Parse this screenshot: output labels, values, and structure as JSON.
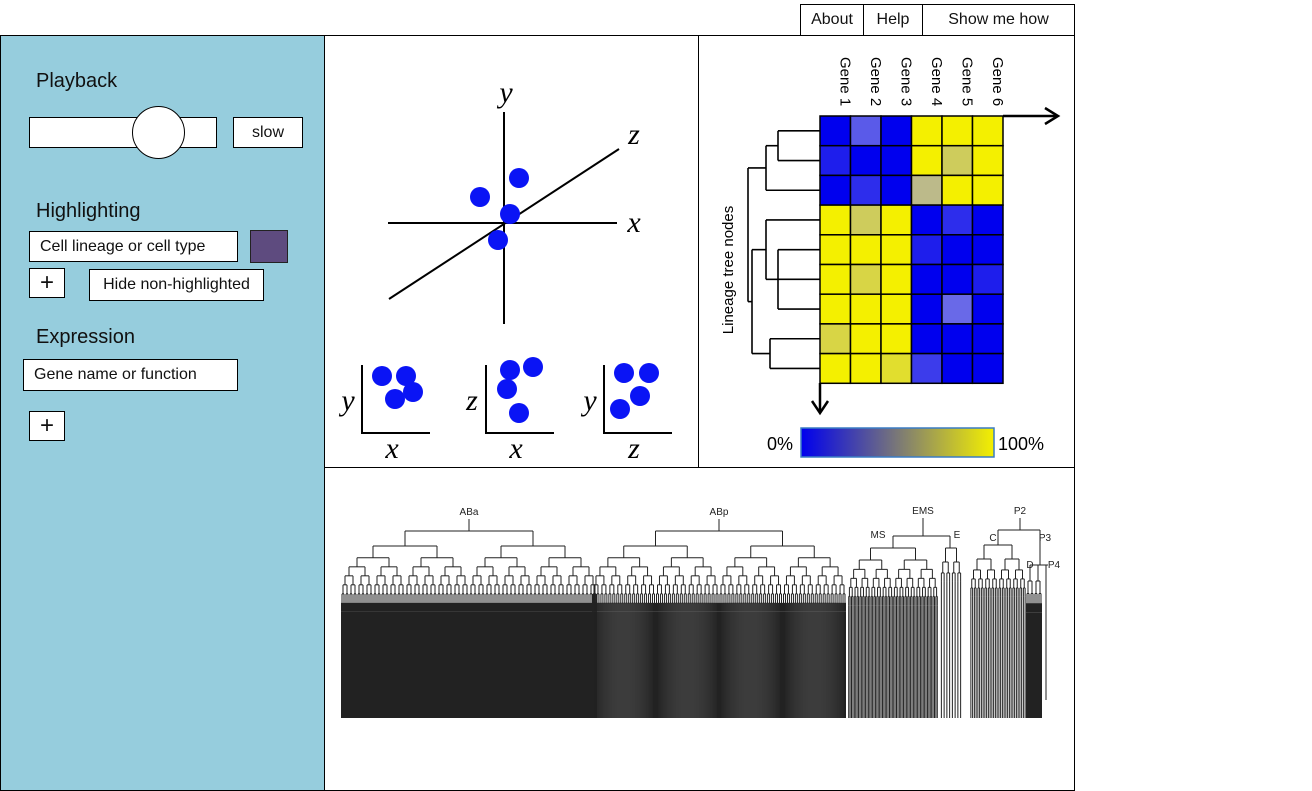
{
  "topnav": {
    "about": "About",
    "help": "Help",
    "show_me_how": "Show me how"
  },
  "sidebar": {
    "bg_color": "#96cddd",
    "playback": {
      "heading": "Playback",
      "speed_label": "slow"
    },
    "highlighting": {
      "heading": "Highlighting",
      "field_text": "Cell lineage or cell type",
      "swatch_color": "#5e4b7f",
      "add_label": "+",
      "hide_label": "Hide non-highlighted"
    },
    "expression": {
      "heading": "Expression",
      "field_text": "Gene name or function",
      "add_label": "+"
    }
  },
  "plot3d": {
    "axis_x": "x",
    "axis_y": "y",
    "axis_z": "z",
    "point_color": "#0a14f5",
    "projections": [
      {
        "vertical": "y",
        "horizontal": "x"
      },
      {
        "vertical": "z",
        "horizontal": "x"
      },
      {
        "vertical": "y",
        "horizontal": "z"
      }
    ]
  },
  "heatmap": {
    "genes": [
      "Gene 1",
      "Gene 2",
      "Gene 3",
      "Gene 4",
      "Gene 5",
      "Gene 6"
    ],
    "row_axis_label": "Lineage tree nodes",
    "scale_min_label": "0%",
    "scale_max_label": "100%",
    "low_color": "#0000ee",
    "high_color": "#f4f000",
    "values": [
      [
        0.0,
        0.3,
        0.0,
        1.0,
        1.0,
        1.0
      ],
      [
        0.1,
        0.0,
        0.0,
        1.0,
        0.8,
        1.0
      ],
      [
        0.0,
        0.15,
        0.0,
        0.7,
        1.0,
        1.0
      ],
      [
        1.0,
        0.8,
        1.0,
        0.0,
        0.15,
        0.0
      ],
      [
        1.0,
        1.0,
        1.0,
        0.1,
        0.0,
        0.0
      ],
      [
        1.0,
        0.85,
        1.0,
        0.0,
        0.0,
        0.1
      ],
      [
        1.0,
        1.0,
        1.0,
        0.0,
        0.35,
        0.0
      ],
      [
        0.85,
        1.0,
        1.0,
        0.0,
        0.0,
        0.0
      ],
      [
        1.0,
        1.0,
        0.9,
        0.2,
        0.0,
        0.0
      ]
    ]
  },
  "lineage": {
    "labels": {
      "aba": "ABa",
      "abp": "ABp",
      "ems": "EMS",
      "ms": "MS",
      "e": "E",
      "p2": "P2",
      "c": "C",
      "p3": "P3",
      "d": "D",
      "p4": "P4"
    }
  }
}
